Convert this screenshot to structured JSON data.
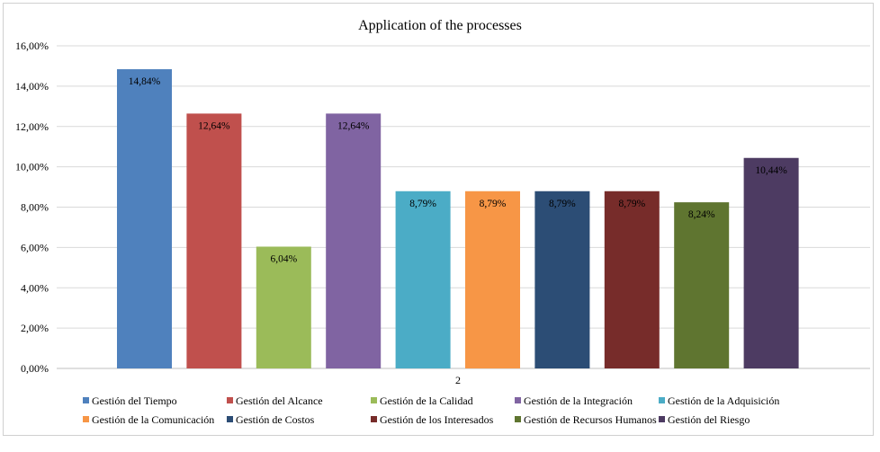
{
  "chart_data": {
    "type": "bar",
    "title": "Application of the processes",
    "xlabel": "",
    "ylabel": "",
    "x_tick_labels": [
      "2"
    ],
    "ylim": [
      0,
      16
    ],
    "y_ticks": [
      "0,00%",
      "2,00%",
      "4,00%",
      "6,00%",
      "8,00%",
      "10,00%",
      "12,00%",
      "14,00%",
      "16,00%"
    ],
    "grid": true,
    "legend_position": "bottom",
    "series": [
      {
        "name": "Gestión del Tiempo",
        "value": 14.84,
        "label": "14,84%",
        "color": "#4F81BD"
      },
      {
        "name": "Gestión del Alcance",
        "value": 12.64,
        "label": "12,64%",
        "color": "#C0504D"
      },
      {
        "name": "Gestión de la Calidad",
        "value": 6.04,
        "label": "6,04%",
        "color": "#9BBB59"
      },
      {
        "name": "Gestión de la Integración",
        "value": 12.64,
        "label": "12,64%",
        "color": "#8064A2"
      },
      {
        "name": "Gestión de la Adquisición",
        "value": 8.79,
        "label": "8,79%",
        "color": "#4BACC6"
      },
      {
        "name": "Gestión de la Comunicación",
        "value": 8.79,
        "label": "8,79%",
        "color": "#F79646"
      },
      {
        "name": "Gestión de Costos",
        "value": 8.79,
        "label": "8,79%",
        "color": "#2C4D75"
      },
      {
        "name": "Gestión de los Interesados",
        "value": 8.79,
        "label": "8,79%",
        "color": "#772C2A"
      },
      {
        "name": "Gestión de Recursos Humanos",
        "value": 8.24,
        "label": "8,24%",
        "color": "#5F7530"
      },
      {
        "name": "Gestión  del Riesgo",
        "value": 10.44,
        "label": "10,44%",
        "color": "#4D3B62"
      }
    ]
  }
}
